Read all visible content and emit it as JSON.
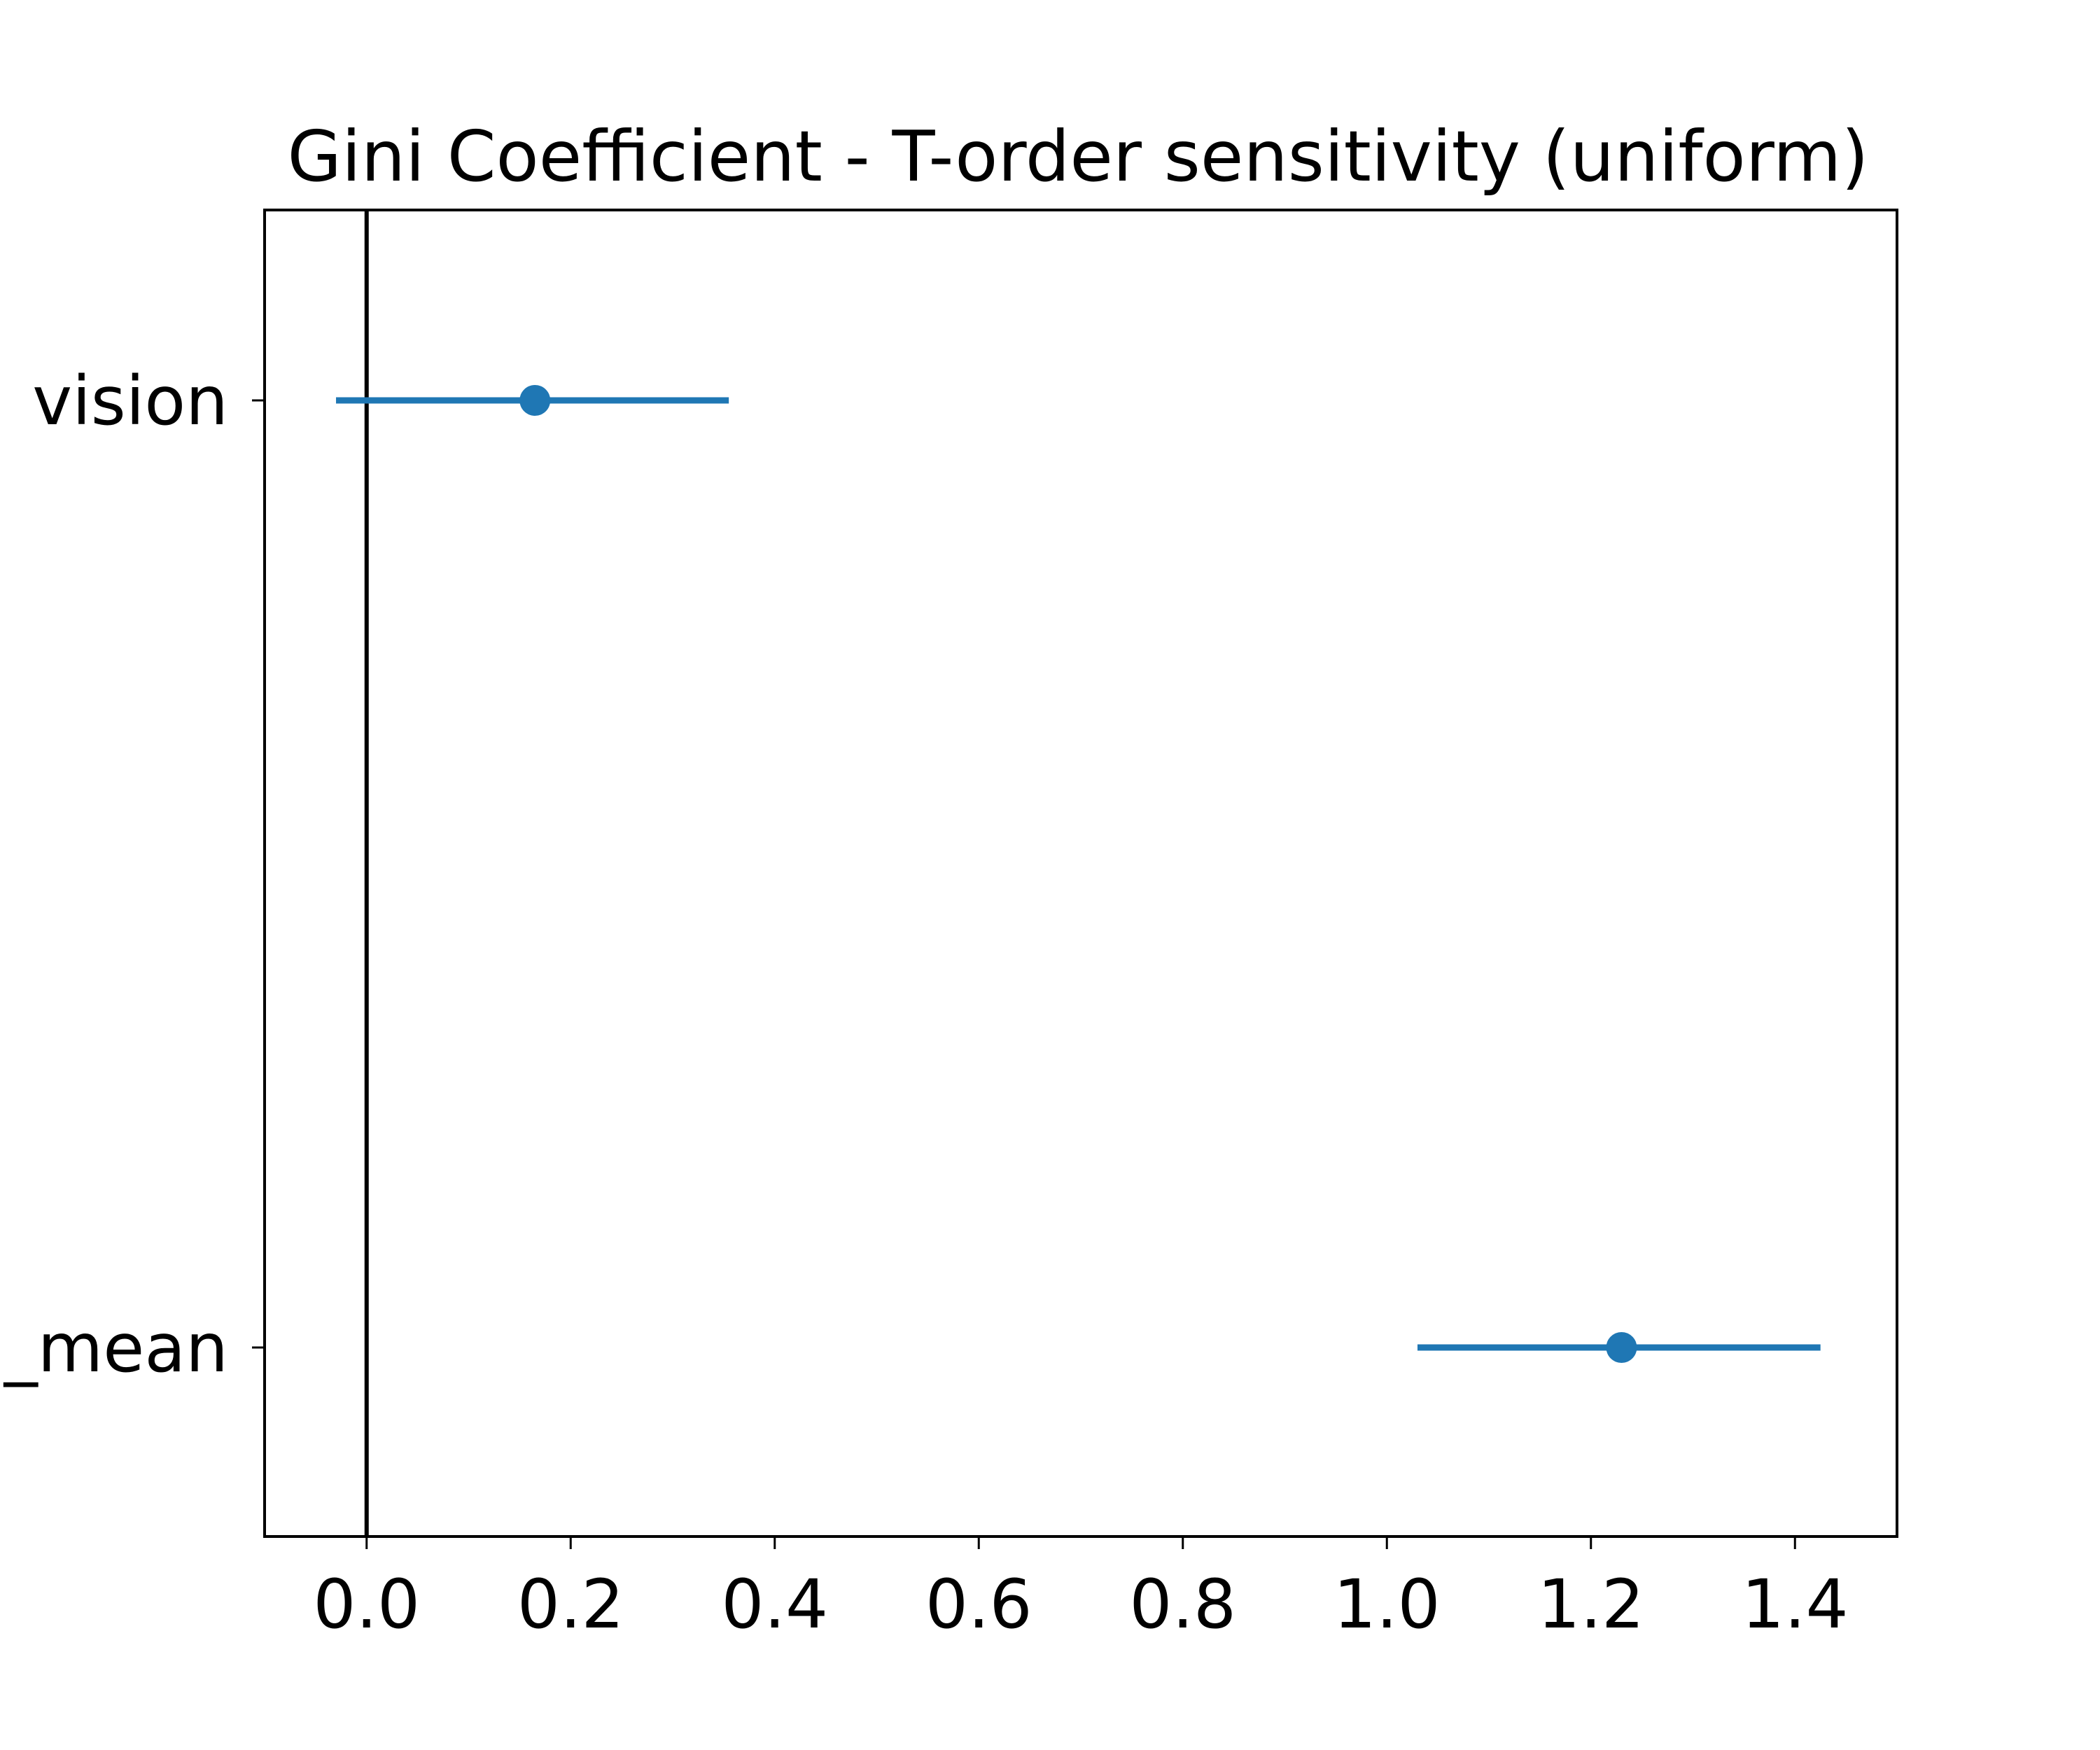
{
  "chart_data": {
    "type": "scatter",
    "title": "Gini Coefficient - T-order sensitivity (uniform)",
    "xlabel": "",
    "ylabel": "",
    "xlim": [
      -0.1,
      1.5
    ],
    "x_ticks": [
      "0.0",
      "0.2",
      "0.4",
      "0.6",
      "0.8",
      "1.0",
      "1.2",
      "1.4"
    ],
    "x_tick_values": [
      0.0,
      0.2,
      0.4,
      0.6,
      0.8,
      1.0,
      1.2,
      1.4
    ],
    "categories": [
      "vision",
      "_mean"
    ],
    "series": [
      {
        "points": [
          {
            "category": "vision",
            "value": 0.165,
            "lower": -0.03,
            "upper": 0.355
          },
          {
            "category": "_mean",
            "value": 1.23,
            "lower": 1.03,
            "upper": 1.425
          }
        ]
      }
    ],
    "reference_line_x": 0,
    "grid": false,
    "colors": {
      "series": "#1f77b4",
      "reference": "#000000"
    }
  }
}
